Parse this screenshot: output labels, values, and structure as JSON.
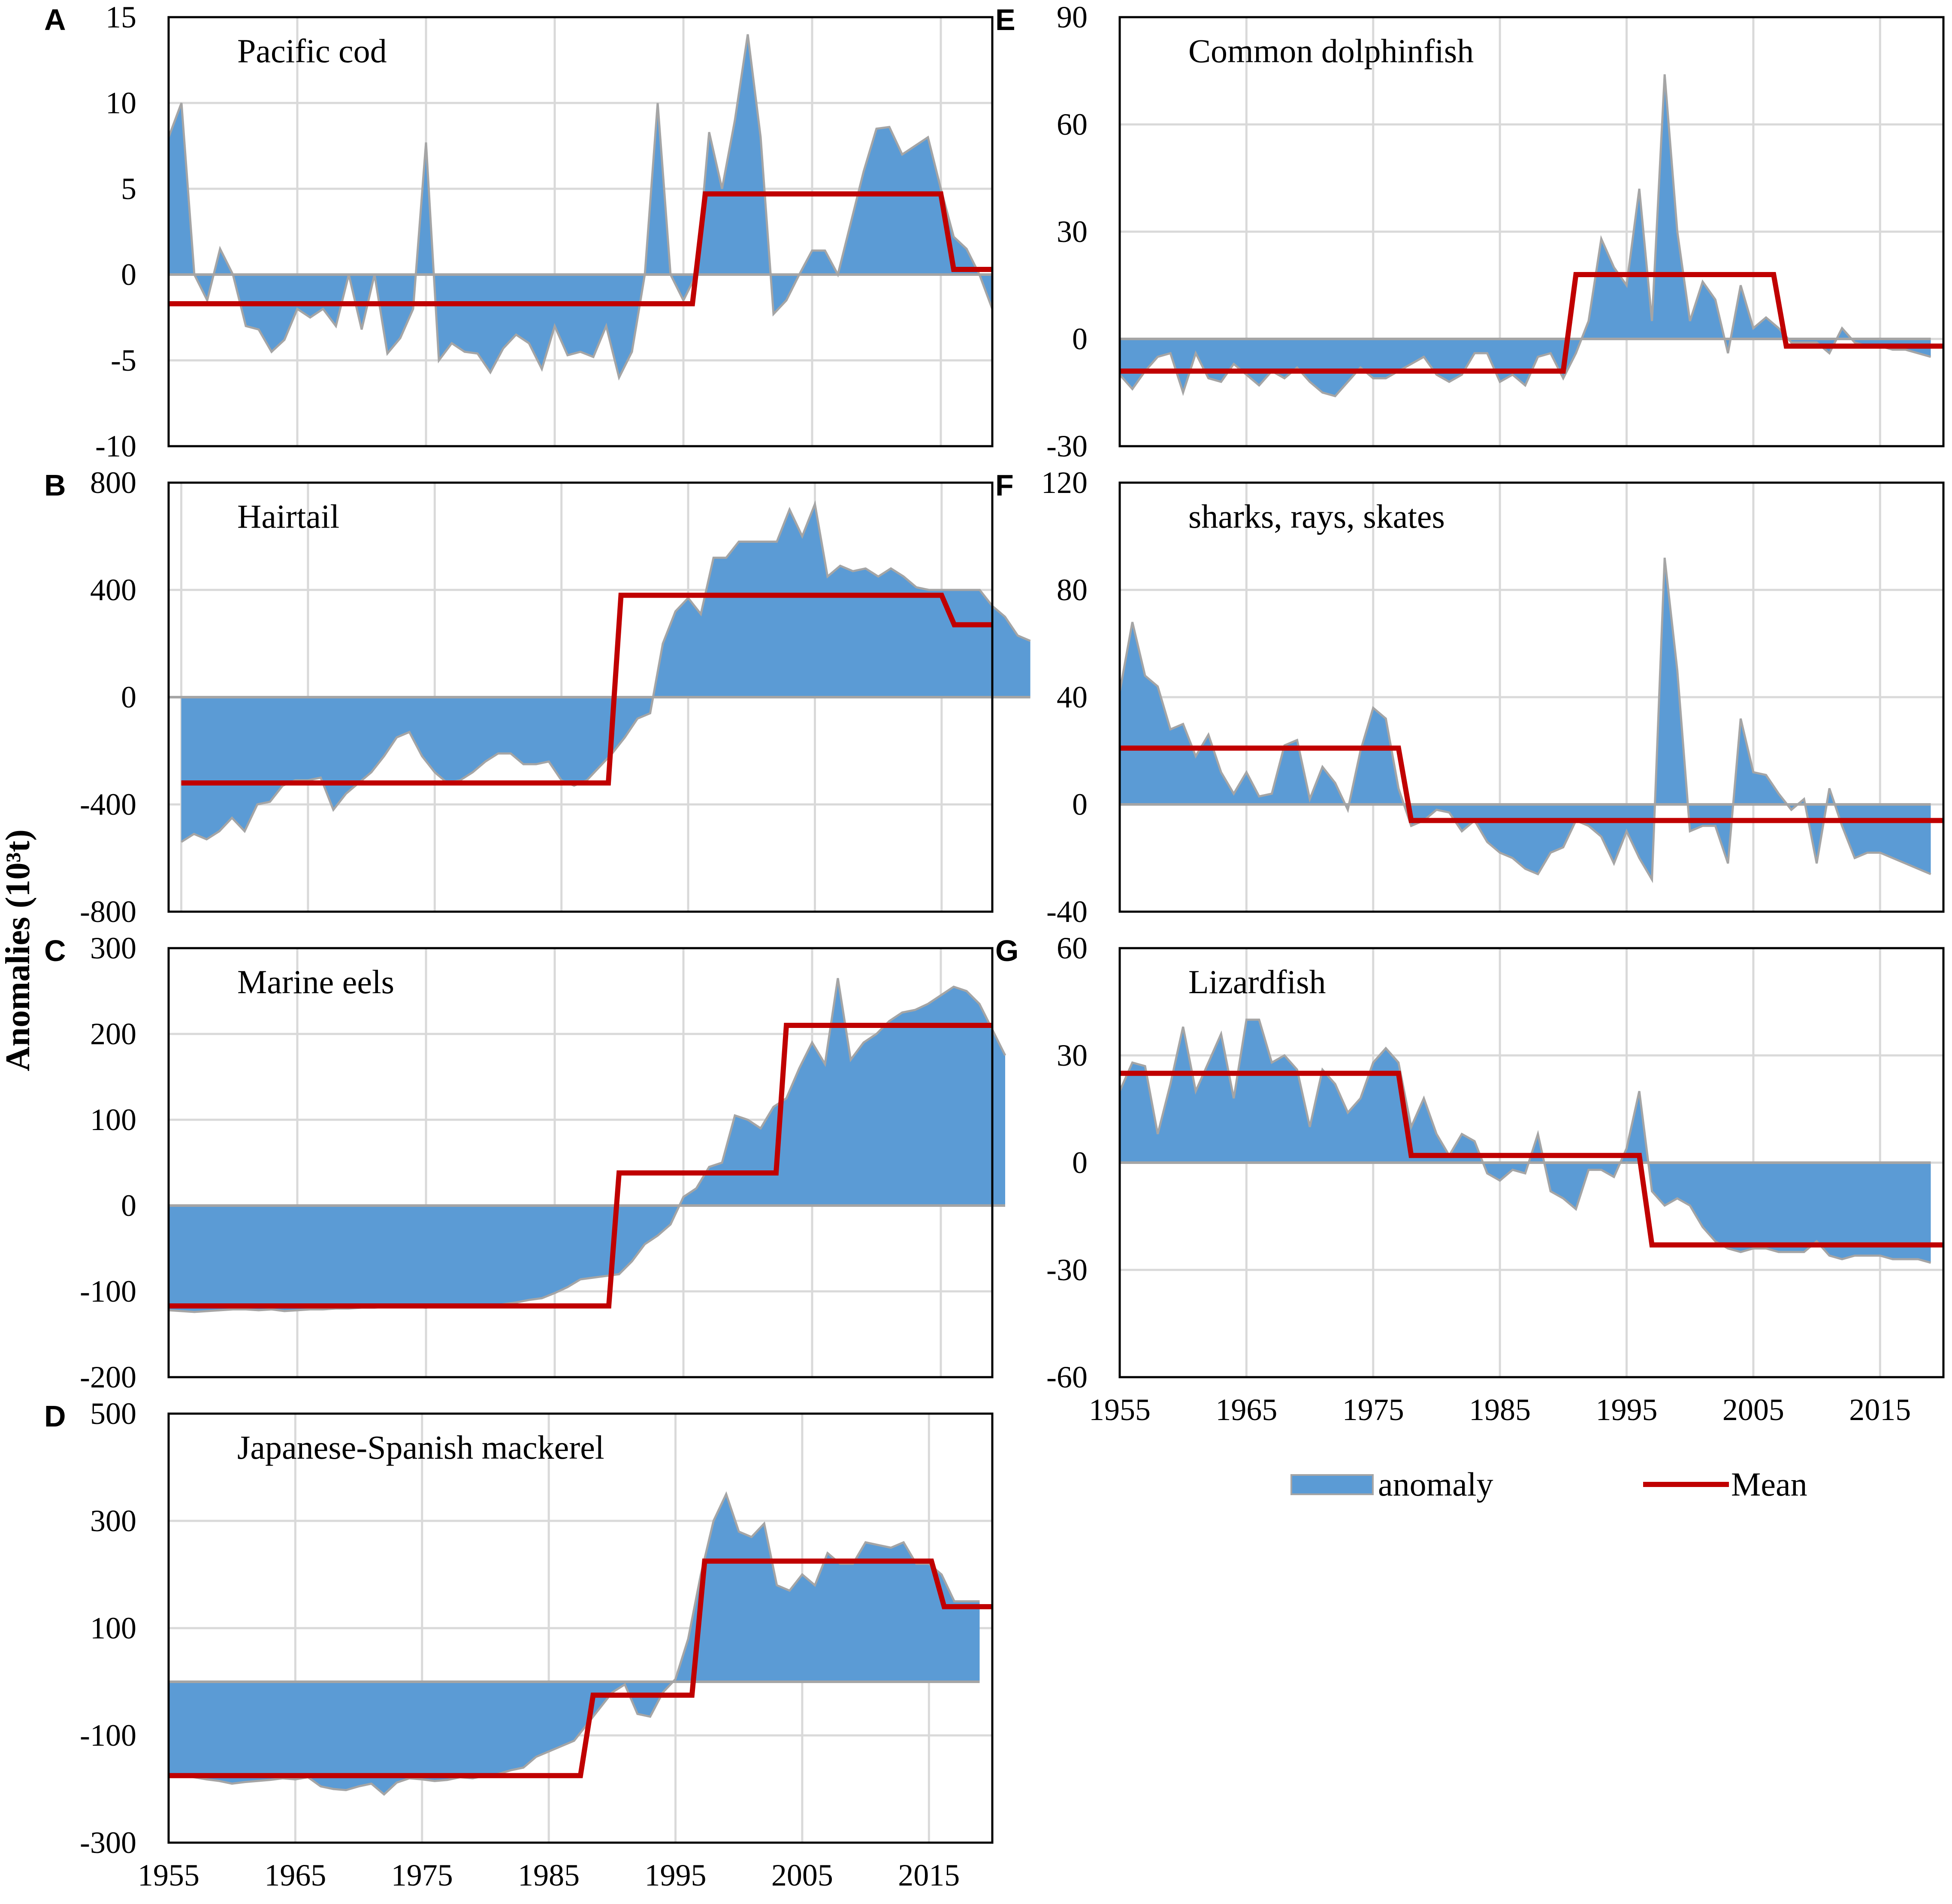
{
  "figure": {
    "y_axis_label": "Anomalies (10³t)",
    "legend": {
      "anomaly_label": "anomaly",
      "mean_label": "Mean"
    },
    "colors": {
      "anomaly_fill": "#5b9bd5",
      "anomaly_edge": "#a5a5a5",
      "mean_line": "#c00000",
      "grid": "#d9d9d9",
      "frame": "#000000"
    }
  },
  "chart_data": [
    {
      "id": "A",
      "type": "area",
      "title": "Pacific cod",
      "xlim": [
        1955,
        2019
      ],
      "ylim": [
        -10,
        15
      ],
      "yticks": [
        -10,
        -5,
        0,
        5,
        10,
        15
      ],
      "xticks": [
        1955,
        1965,
        1975,
        1985,
        1995,
        2005,
        2015
      ],
      "show_xtick_labels": false,
      "x_start": 1955,
      "anomaly": [
        8,
        10,
        0,
        -1.5,
        1.5,
        0,
        -3,
        -3.2,
        -4.5,
        -3.8,
        -2,
        -2.5,
        -2,
        -3,
        0,
        -3.2,
        0,
        -4.6,
        -3.7,
        -2,
        7.7,
        -5,
        -4,
        -4.5,
        -4.6,
        -5.7,
        -4.3,
        -3.5,
        -4,
        -5.5,
        -3,
        -4.7,
        -4.5,
        -4.8,
        -3,
        -6,
        -4.5,
        0,
        10,
        0,
        -1.5,
        0,
        8.3,
        5,
        9,
        14,
        8,
        -2.3,
        -1.5,
        0,
        1.4,
        1.4,
        0,
        3,
        6,
        8.5,
        8.6,
        7,
        7.5,
        8,
        5,
        2.2,
        1.5,
        0,
        -2
      ],
      "mean": [
        {
          "from": 1955,
          "to": 1995.7,
          "value": -1.7
        },
        {
          "from": 1996.7,
          "to": 2015,
          "value": 4.7
        },
        {
          "from": 2016,
          "to": 2019,
          "value": 0.3
        }
      ]
    },
    {
      "id": "B",
      "type": "area",
      "title": "Hairtail",
      "xlim": [
        1954,
        2019
      ],
      "ylim": [
        -800,
        800
      ],
      "yticks": [
        -800,
        -400,
        0,
        400,
        800
      ],
      "xticks": [
        1955,
        1965,
        1975,
        1985,
        1995,
        2005,
        2015
      ],
      "show_xtick_labels": false,
      "x_start": 1955,
      "anomaly": [
        -540,
        -510,
        -530,
        -500,
        -450,
        -500,
        -400,
        -390,
        -330,
        -310,
        -310,
        -300,
        -420,
        -360,
        -320,
        -280,
        -220,
        -150,
        -130,
        -220,
        -280,
        -320,
        -310,
        -280,
        -240,
        -210,
        -210,
        -250,
        -250,
        -240,
        -310,
        -330,
        -310,
        -260,
        -210,
        -150,
        -80,
        -60,
        200,
        320,
        370,
        310,
        520,
        520,
        580,
        580,
        580,
        580,
        700,
        600,
        720,
        450,
        490,
        470,
        480,
        450,
        480,
        450,
        410,
        400,
        400,
        400,
        400,
        400,
        340,
        300,
        230,
        210
      ],
      "mean": [
        {
          "from": 1955,
          "to": 1988.7,
          "value": -320
        },
        {
          "from": 1989.7,
          "to": 2015,
          "value": 380
        },
        {
          "from": 2016,
          "to": 2019,
          "value": 270
        }
      ]
    },
    {
      "id": "C",
      "type": "area",
      "title": "Marine eels",
      "xlim": [
        1955,
        2019
      ],
      "ylim": [
        -200,
        300
      ],
      "yticks": [
        -200,
        -100,
        0,
        100,
        200,
        300
      ],
      "xticks": [
        1955,
        1965,
        1975,
        1985,
        1995,
        2005,
        2015
      ],
      "show_xtick_labels": false,
      "x_start": 1955,
      "anomaly": [
        -122,
        -123,
        -124,
        -123,
        -122,
        -121,
        -121,
        -122,
        -121,
        -123,
        -122,
        -121,
        -121,
        -120,
        -120,
        -119,
        -119,
        -118,
        -118,
        -118,
        -119,
        -117,
        -117,
        -116,
        -117,
        -117,
        -115,
        -113,
        -110,
        -108,
        -102,
        -95,
        -86,
        -84,
        -82,
        -80,
        -65,
        -45,
        -35,
        -22,
        10,
        20,
        45,
        50,
        105,
        100,
        90,
        115,
        125,
        160,
        190,
        165,
        265,
        170,
        190,
        200,
        215,
        225,
        228,
        235,
        245,
        255,
        250,
        235,
        205,
        175
      ],
      "mean": [
        {
          "from": 1955,
          "to": 1989.2,
          "value": -117
        },
        {
          "from": 1990,
          "to": 2002.2,
          "value": 38
        },
        {
          "from": 2003,
          "to": 2019,
          "value": 210
        }
      ]
    },
    {
      "id": "D",
      "type": "area",
      "title": "Japanese-Spanish mackerel",
      "xlim": [
        1955,
        2020
      ],
      "ylim": [
        -300,
        500
      ],
      "yticks": [
        -300,
        -100,
        100,
        300,
        500
      ],
      "xticks": [
        1955,
        1965,
        1975,
        1985,
        1995,
        2005,
        2015
      ],
      "show_xtick_labels": true,
      "x_start": 1955,
      "anomaly": [
        -175,
        -175,
        -178,
        -182,
        -185,
        -190,
        -187,
        -185,
        -183,
        -180,
        -182,
        -178,
        -195,
        -200,
        -202,
        -195,
        -190,
        -210,
        -188,
        -180,
        -182,
        -185,
        -183,
        -178,
        -180,
        -175,
        -172,
        -165,
        -160,
        -140,
        -130,
        -120,
        -110,
        -80,
        -50,
        -20,
        -5,
        -60,
        -65,
        -20,
        5,
        80,
        200,
        300,
        350,
        280,
        270,
        295,
        180,
        170,
        200,
        180,
        240,
        220,
        220,
        260,
        255,
        250,
        260,
        220,
        220,
        200,
        150,
        150,
        150
      ],
      "mean": [
        {
          "from": 1955,
          "to": 1987.5,
          "value": -175
        },
        {
          "from": 1988.5,
          "to": 1996.3,
          "value": -25
        },
        {
          "from": 1997.3,
          "to": 2015.2,
          "value": 225
        },
        {
          "from": 2016.2,
          "to": 2020,
          "value": 140
        }
      ]
    },
    {
      "id": "E",
      "type": "area",
      "title": "Common dolphinfish",
      "xlim": [
        1955,
        2020
      ],
      "ylim": [
        -30,
        90
      ],
      "yticks": [
        -30,
        0,
        30,
        60,
        90
      ],
      "xticks": [
        1955,
        1965,
        1975,
        1985,
        1995,
        2005,
        2015
      ],
      "show_xtick_labels": false,
      "x_start": 1955,
      "anomaly": [
        -10,
        -14,
        -9,
        -5,
        -4,
        -15,
        -4,
        -11,
        -12,
        -7,
        -10,
        -13,
        -9,
        -11,
        -8,
        -12,
        -15,
        -16,
        -12,
        -8,
        -11,
        -11,
        -9,
        -7,
        -5,
        -10,
        -12,
        -10,
        -4,
        -4,
        -12,
        -10,
        -13,
        -5,
        -4,
        -11,
        -4,
        5,
        28,
        20,
        15,
        42,
        5,
        74,
        30,
        5,
        16,
        11,
        -4,
        15,
        3,
        6,
        3,
        -1,
        -1,
        -1,
        -4,
        3,
        -1,
        -2,
        -2,
        -3,
        -3,
        -4,
        -5
      ],
      "mean": [
        {
          "from": 1955,
          "to": 1990,
          "value": -9
        },
        {
          "from": 1991,
          "to": 2006.6,
          "value": 18
        },
        {
          "from": 2007.6,
          "to": 2020,
          "value": -2
        }
      ]
    },
    {
      "id": "F",
      "type": "area",
      "title": "sharks, rays, skates",
      "xlim": [
        1955,
        2020
      ],
      "ylim": [
        -40,
        120
      ],
      "yticks": [
        -40,
        0,
        40,
        80,
        120
      ],
      "xticks": [
        1955,
        1965,
        1975,
        1985,
        1995,
        2005,
        2015
      ],
      "show_xtick_labels": false,
      "x_start": 1955,
      "anomaly": [
        42,
        68,
        48,
        44,
        28,
        30,
        18,
        26,
        12,
        4,
        12,
        3,
        4,
        22,
        24,
        2,
        14,
        8,
        -2,
        20,
        36,
        32,
        6,
        -8,
        -6,
        -2,
        -3,
        -10,
        -6,
        -14,
        -18,
        -20,
        -24,
        -26,
        -18,
        -16,
        -6,
        -8,
        -12,
        -22,
        -10,
        -20,
        -28,
        92,
        50,
        -10,
        -8,
        -8,
        -22,
        32,
        12,
        11,
        4,
        -2,
        2,
        -22,
        6,
        -8,
        -20,
        -18,
        -18,
        -20,
        -22,
        -24,
        -26
      ],
      "mean": [
        {
          "from": 1955,
          "to": 1977,
          "value": 21
        },
        {
          "from": 1978,
          "to": 2020,
          "value": -6
        }
      ]
    },
    {
      "id": "G",
      "type": "area",
      "title": "Lizardfish",
      "xlim": [
        1955,
        2020
      ],
      "ylim": [
        -60,
        60
      ],
      "yticks": [
        -60,
        -30,
        0,
        30,
        60
      ],
      "xticks": [
        1955,
        1965,
        1975,
        1985,
        1995,
        2005,
        2015
      ],
      "show_xtick_labels": true,
      "x_start": 1955,
      "anomaly": [
        20,
        28,
        27,
        8,
        22,
        38,
        20,
        28,
        36,
        18,
        40,
        40,
        28,
        30,
        26,
        10,
        26,
        22,
        14,
        18,
        28,
        32,
        28,
        10,
        18,
        8,
        2,
        8,
        6,
        -3,
        -5,
        -2,
        -3,
        8,
        -8,
        -10,
        -13,
        -2,
        -2,
        -4,
        4,
        20,
        -8,
        -12,
        -10,
        -12,
        -18,
        -22,
        -24,
        -25,
        -24,
        -24,
        -25,
        -25,
        -25,
        -22,
        -26,
        -27,
        -26,
        -26,
        -26,
        -27,
        -27,
        -27,
        -28
      ],
      "mean": [
        {
          "from": 1955,
          "to": 1977,
          "value": 25
        },
        {
          "from": 1978,
          "to": 1996,
          "value": 2
        },
        {
          "from": 1997,
          "to": 2020,
          "value": -23
        }
      ]
    }
  ]
}
